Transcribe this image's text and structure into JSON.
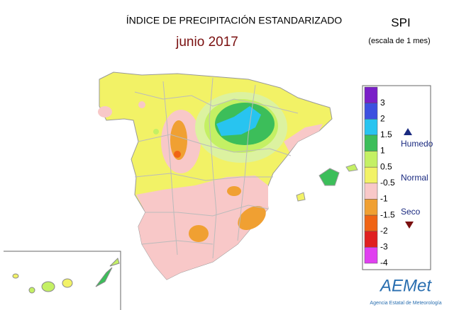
{
  "header": {
    "title": "ÍNDICE DE PRECIPITACIÓN ESTANDARIZADO",
    "period": "junio 2017",
    "index": "SPI",
    "scale": "(escala de 1 mes)"
  },
  "legend": {
    "colors": [
      "#7a1fc8",
      "#3c50e0",
      "#28c4f0",
      "#3cbe5a",
      "#c4f064",
      "#f2f266",
      "#f8c8c8",
      "#f0a032",
      "#f06414",
      "#e02020",
      "#e040f0"
    ],
    "labels": [
      3,
      2,
      1.5,
      1,
      0.5,
      -0.5,
      -1,
      -1.5,
      -2,
      -3,
      -4
    ],
    "wet": "Humedo",
    "normal": "Normal",
    "dry": "Seco"
  },
  "logo": {
    "name": "AEMet",
    "agency": "Agencia Estatal de Meteorología"
  }
}
